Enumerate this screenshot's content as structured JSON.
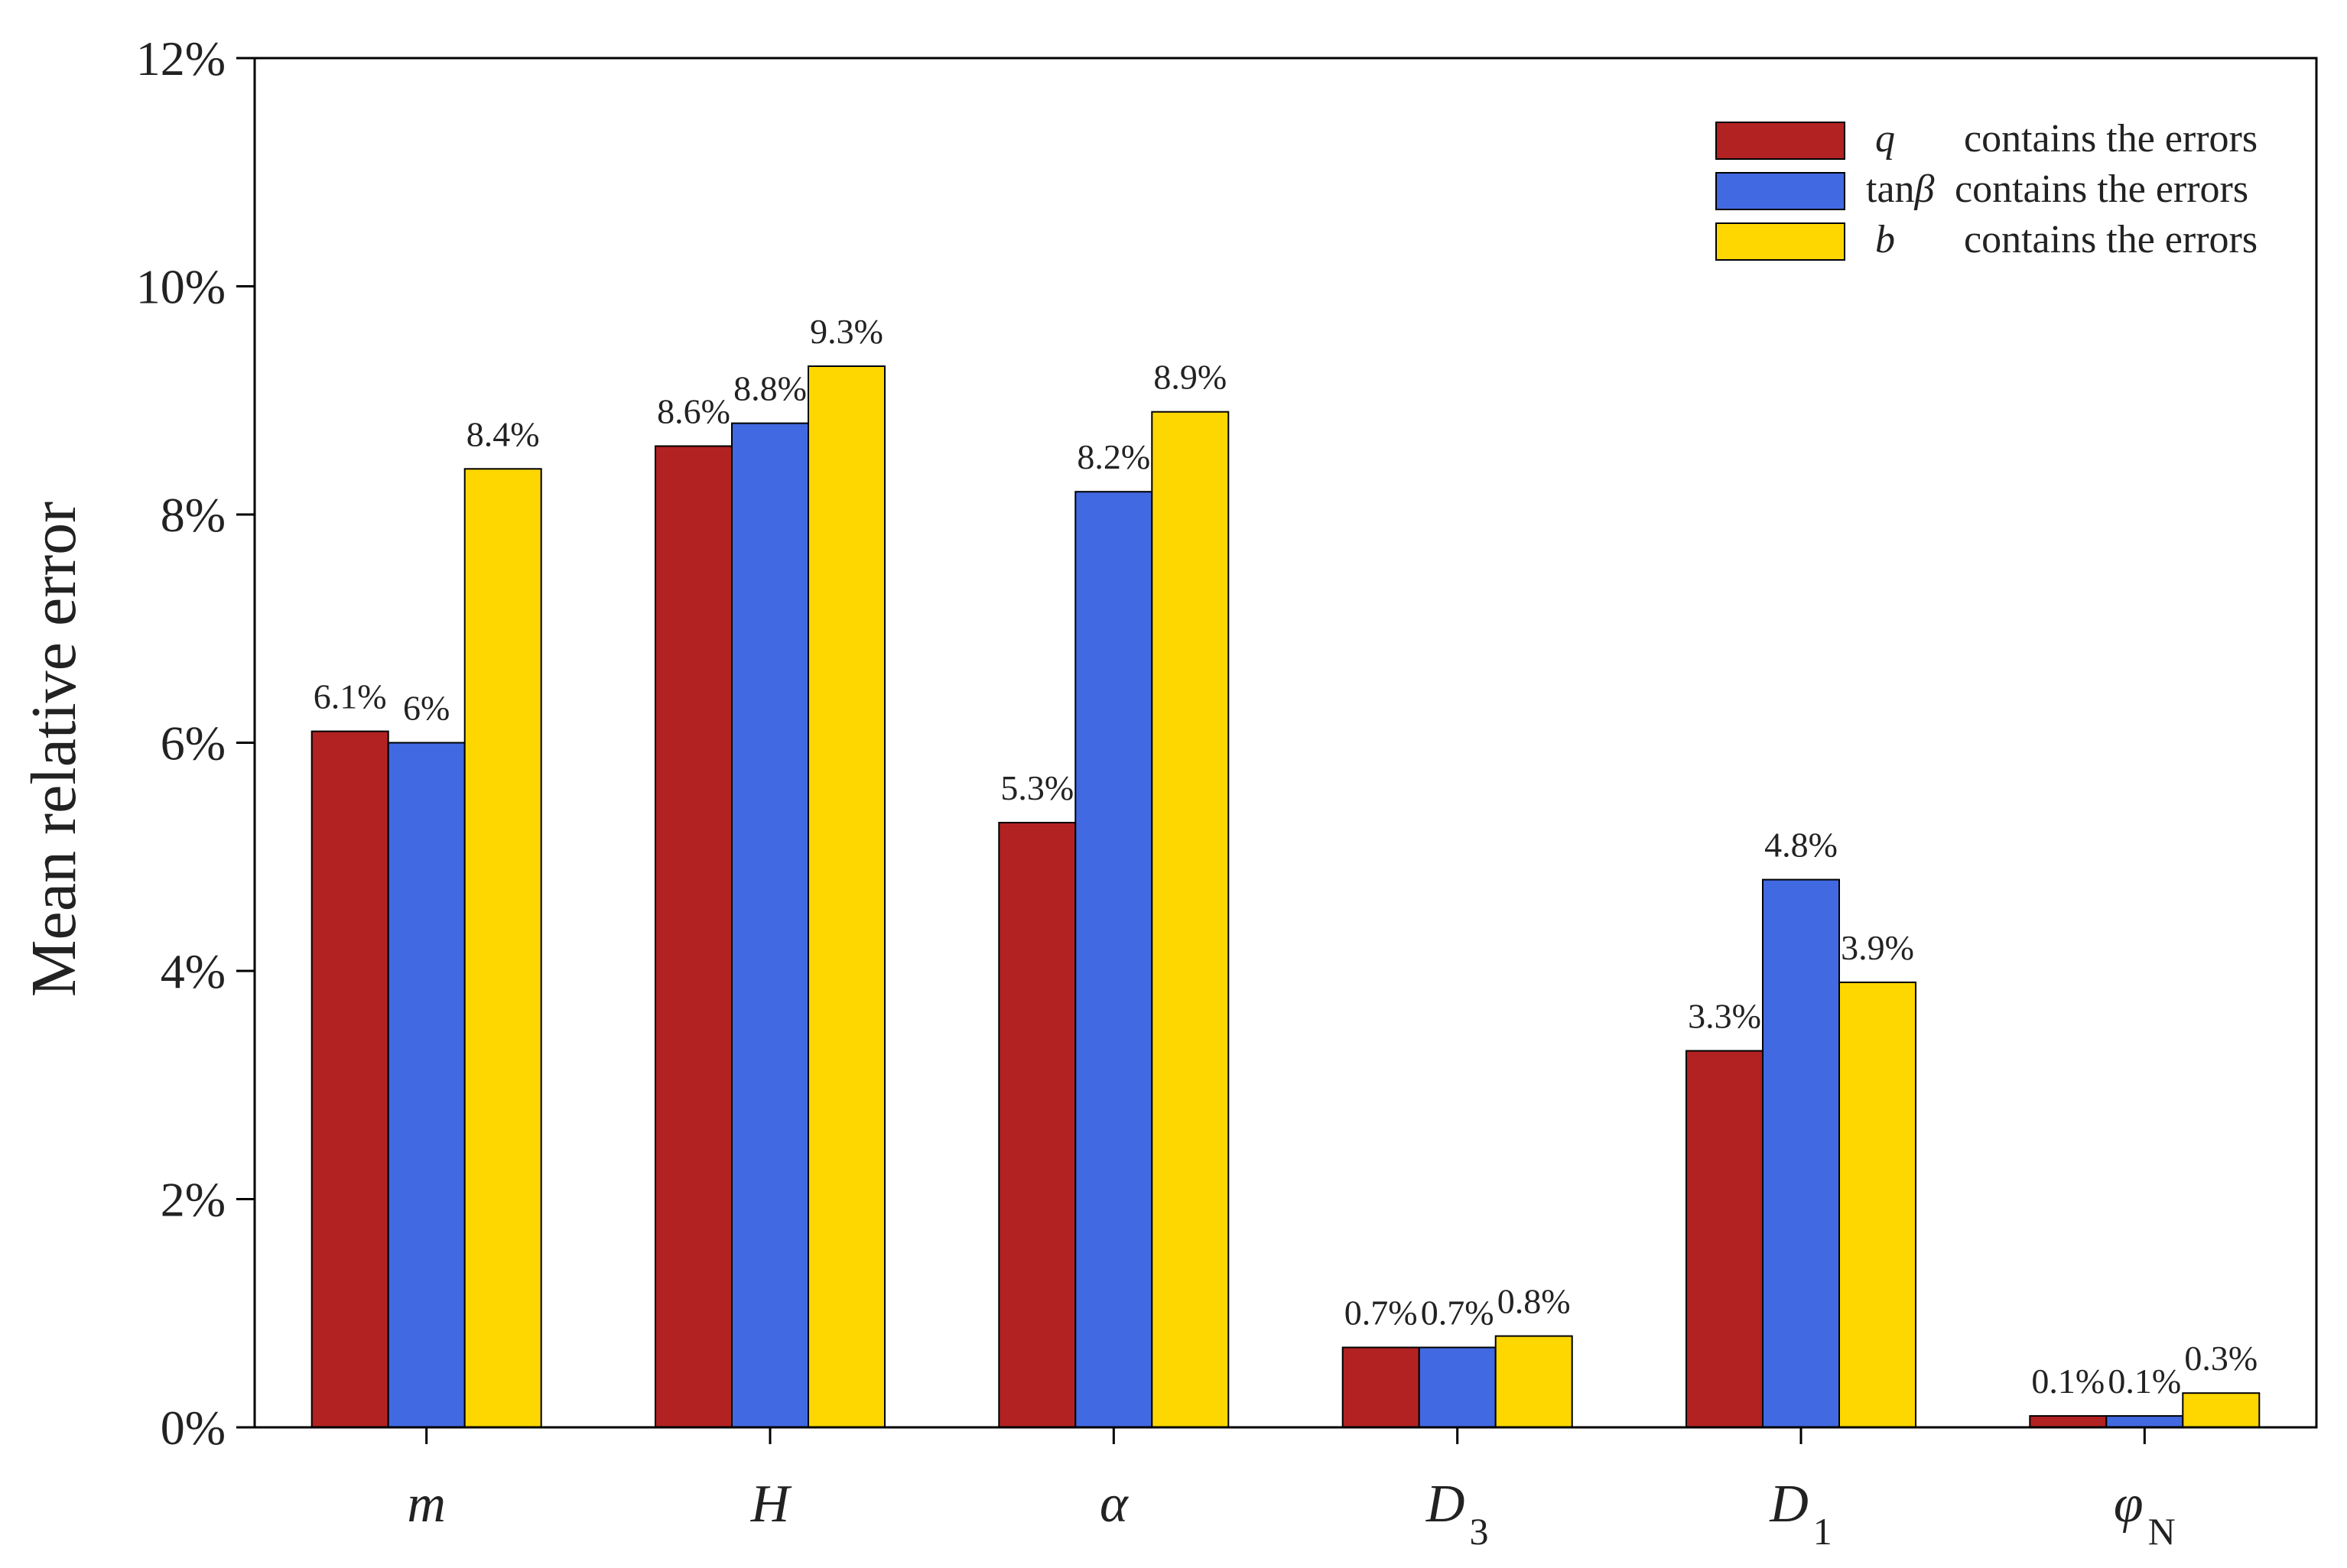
{
  "chart_data": {
    "type": "bar",
    "title": "",
    "xlabel": "",
    "ylabel": "Mean relative error",
    "ylim": [
      0,
      12
    ],
    "ytick_values": [
      0,
      2,
      4,
      6,
      8,
      10,
      12
    ],
    "ytick_labels": [
      "0%",
      "2%",
      "4%",
      "6%",
      "8%",
      "10%",
      "12%"
    ],
    "categories": [
      {
        "main": "m",
        "sub": ""
      },
      {
        "main": "H",
        "sub": ""
      },
      {
        "main": "α",
        "sub": ""
      },
      {
        "main": "D",
        "sub": "3"
      },
      {
        "main": "D",
        "sub": "1"
      },
      {
        "main": "φ",
        "sub": "N"
      }
    ],
    "series": [
      {
        "name": "q",
        "legend_symbol": "q",
        "legend_suffix": "contains the errors",
        "color": "#B22222",
        "values": [
          6.1,
          8.6,
          5.3,
          0.7,
          3.3,
          0.1
        ],
        "labels": [
          "6.1%",
          "8.6%",
          "5.3%",
          "0.7%",
          "3.3%",
          "0.1%"
        ]
      },
      {
        "name": "tanβ",
        "legend_prefix": "tan",
        "legend_symbol": "β",
        "legend_suffix": "contains the errors",
        "color": "#4169E1",
        "values": [
          6.0,
          8.8,
          8.2,
          0.7,
          4.8,
          0.1
        ],
        "labels": [
          "6%",
          "8.8%",
          "8.2%",
          "0.7%",
          "4.8%",
          "0.1%"
        ]
      },
      {
        "name": "b",
        "legend_symbol": "b",
        "legend_suffix": "contains the errors",
        "color": "#FFD700",
        "values": [
          8.4,
          9.3,
          8.9,
          0.8,
          3.9,
          0.3
        ],
        "labels": [
          "8.4%",
          "9.3%",
          "8.9%",
          "0.8%",
          "3.9%",
          "0.3%"
        ]
      }
    ],
    "legend_position": "top-right",
    "grid": false
  }
}
